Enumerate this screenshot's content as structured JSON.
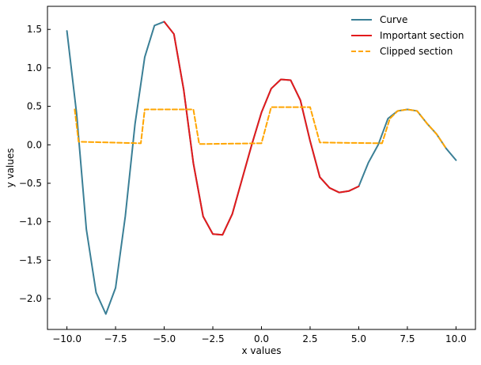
{
  "chart_data": {
    "type": "line",
    "title": "",
    "xlabel": "x values",
    "ylabel": "y values",
    "xlim": [
      -11.0,
      11.0
    ],
    "ylim": [
      -2.4,
      1.8
    ],
    "xticks": [
      -10.0,
      -7.5,
      -5.0,
      -2.5,
      0.0,
      2.5,
      5.0,
      7.5,
      10.0
    ],
    "xtick_labels": [
      "−10.0",
      "−7.5",
      "−5.0",
      "−2.5",
      "0.0",
      "2.5",
      "5.0",
      "7.5",
      "10.0"
    ],
    "yticks": [
      1.5,
      1.0,
      0.5,
      0.0,
      -0.5,
      -1.0,
      -1.5,
      -2.0
    ],
    "ytick_labels": [
      "1.5",
      "1.0",
      "0.5",
      "0.0",
      "−0.5",
      "−1.0",
      "−1.5",
      "−2.0"
    ],
    "grid": false,
    "legend_position": "top-right",
    "series": [
      {
        "name": "Curve",
        "color": "#3a7f96",
        "style": "solid",
        "x": [
          -10.0,
          -9.5,
          -9.0,
          -8.5,
          -8.0,
          -7.5,
          -7.0,
          -6.5,
          -6.0,
          -5.5,
          -5.0,
          -4.5,
          -4.0,
          -3.5,
          -3.0,
          -2.5,
          -2.0,
          -1.5,
          -1.0,
          -0.5,
          0.0,
          0.5,
          1.0,
          1.5,
          2.0,
          2.5,
          3.0,
          3.5,
          4.0,
          4.5,
          5.0,
          5.5,
          6.0,
          6.5,
          7.0,
          7.5,
          8.0,
          8.5,
          9.0,
          9.5,
          10.0
        ],
        "y": [
          1.48,
          0.4,
          -1.1,
          -1.92,
          -2.2,
          -1.86,
          -0.93,
          0.27,
          1.14,
          1.55,
          1.6,
          1.44,
          0.72,
          -0.24,
          -0.93,
          -1.16,
          -1.17,
          -0.9,
          -0.45,
          0.0,
          0.42,
          0.73,
          0.85,
          0.84,
          0.58,
          0.05,
          -0.42,
          -0.56,
          -0.62,
          -0.6,
          -0.54,
          -0.23,
          0.0,
          0.34,
          0.44,
          0.46,
          0.44,
          0.28,
          0.14,
          -0.05,
          -0.2
        ]
      },
      {
        "name": "Important section",
        "color": "#e31a1c",
        "style": "solid",
        "x": [
          -5.0,
          -4.5,
          -4.0,
          -3.5,
          -3.0,
          -2.5,
          -2.0,
          -1.5,
          -1.0,
          -0.5,
          0.0,
          0.5,
          1.0,
          1.5,
          2.0,
          2.5,
          3.0,
          3.5,
          4.0,
          4.5,
          5.0
        ],
        "y": [
          1.6,
          1.44,
          0.72,
          -0.24,
          -0.93,
          -1.16,
          -1.17,
          -0.9,
          -0.45,
          0.0,
          0.42,
          0.73,
          0.85,
          0.84,
          0.58,
          0.05,
          -0.42,
          -0.56,
          -0.62,
          -0.6,
          -0.54
        ]
      },
      {
        "name": "Clipped section",
        "color": "#ffa500",
        "style": "dashed",
        "x": [
          -9.6,
          -9.4,
          -6.2,
          -6.0,
          -5.5,
          -3.5,
          -3.2,
          -3.0,
          0.0,
          0.5,
          1.0,
          2.5,
          3.0,
          6.2,
          6.6,
          7.0,
          7.5,
          8.0,
          8.5,
          9.0,
          9.5
        ],
        "y": [
          0.46,
          0.04,
          0.02,
          0.46,
          0.46,
          0.46,
          0.01,
          0.01,
          0.02,
          0.49,
          0.49,
          0.49,
          0.03,
          0.02,
          0.34,
          0.44,
          0.46,
          0.44,
          0.28,
          0.14,
          -0.05
        ]
      }
    ]
  }
}
